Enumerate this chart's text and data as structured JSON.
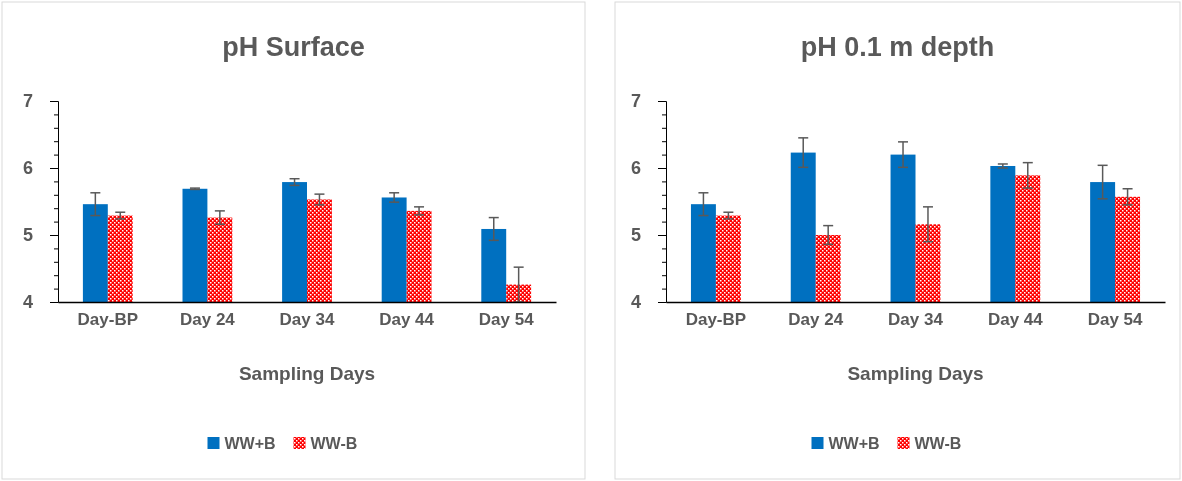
{
  "chart_data": [
    {
      "type": "bar",
      "title": "pH Surface",
      "xlabel": "Sampling Days",
      "categories": [
        "Day-BP",
        "Day 24",
        "Day 34",
        "Day 44",
        "Day 54"
      ],
      "series": [
        {
          "name": "WW+B",
          "color": "#0070c0",
          "values": [
            5.46,
            5.69,
            5.79,
            5.56,
            5.09
          ],
          "errors": [
            0.17,
            0.01,
            0.05,
            0.07,
            0.17
          ]
        },
        {
          "name": "WW-B",
          "color": "#ff0000",
          "values": [
            5.29,
            5.26,
            5.53,
            5.36,
            4.26
          ],
          "errors": [
            0.05,
            0.1,
            0.08,
            0.06,
            0.26
          ]
        }
      ],
      "ylim": [
        4,
        7
      ],
      "yticks": [
        4,
        {
          "value": 4.2,
          "label": null
        },
        {
          "value": 4.4,
          "label": null
        },
        {
          "value": 4.6,
          "label": null
        },
        {
          "value": 4.8,
          "label": null
        },
        5,
        {
          "value": 5.2,
          "label": null
        },
        {
          "value": 5.4,
          "label": null
        },
        {
          "value": 5.6,
          "label": null
        },
        {
          "value": 5.8,
          "label": null
        },
        6,
        {
          "value": 6.2,
          "label": null
        },
        {
          "value": 6.4,
          "label": null
        },
        {
          "value": 6.6,
          "label": null
        },
        {
          "value": 6.8,
          "label": null
        },
        7
      ],
      "grid": false,
      "legend": "bottom"
    },
    {
      "type": "bar",
      "title": "pH 0.1 m depth",
      "xlabel": "Sampling Days",
      "categories": [
        "Day-BP",
        "Day 24",
        "Day 34",
        "Day 44",
        "Day 54"
      ],
      "series": [
        {
          "name": "WW+B",
          "color": "#0070c0",
          "values": [
            5.46,
            6.23,
            6.2,
            6.03,
            5.79
          ],
          "errors": [
            0.17,
            0.22,
            0.19,
            0.03,
            0.25
          ]
        },
        {
          "name": "WW-B",
          "color": "#ff0000",
          "values": [
            5.29,
            5.0,
            5.16,
            5.89,
            5.57
          ],
          "errors": [
            0.05,
            0.14,
            0.26,
            0.19,
            0.12
          ]
        }
      ],
      "ylim": [
        4,
        7
      ],
      "yticks": [
        4,
        {
          "value": 4.2,
          "label": null
        },
        {
          "value": 4.4,
          "label": null
        },
        {
          "value": 4.6,
          "label": null
        },
        {
          "value": 4.8,
          "label": null
        },
        5,
        {
          "value": 5.2,
          "label": null
        },
        {
          "value": 5.4,
          "label": null
        },
        {
          "value": 5.6,
          "label": null
        },
        {
          "value": 5.8,
          "label": null
        },
        6,
        {
          "value": 6.2,
          "label": null
        },
        {
          "value": 6.4,
          "label": null
        },
        {
          "value": 6.6,
          "label": null
        },
        {
          "value": 6.8,
          "label": null
        },
        7
      ],
      "grid": false,
      "legend": "bottom"
    }
  ]
}
